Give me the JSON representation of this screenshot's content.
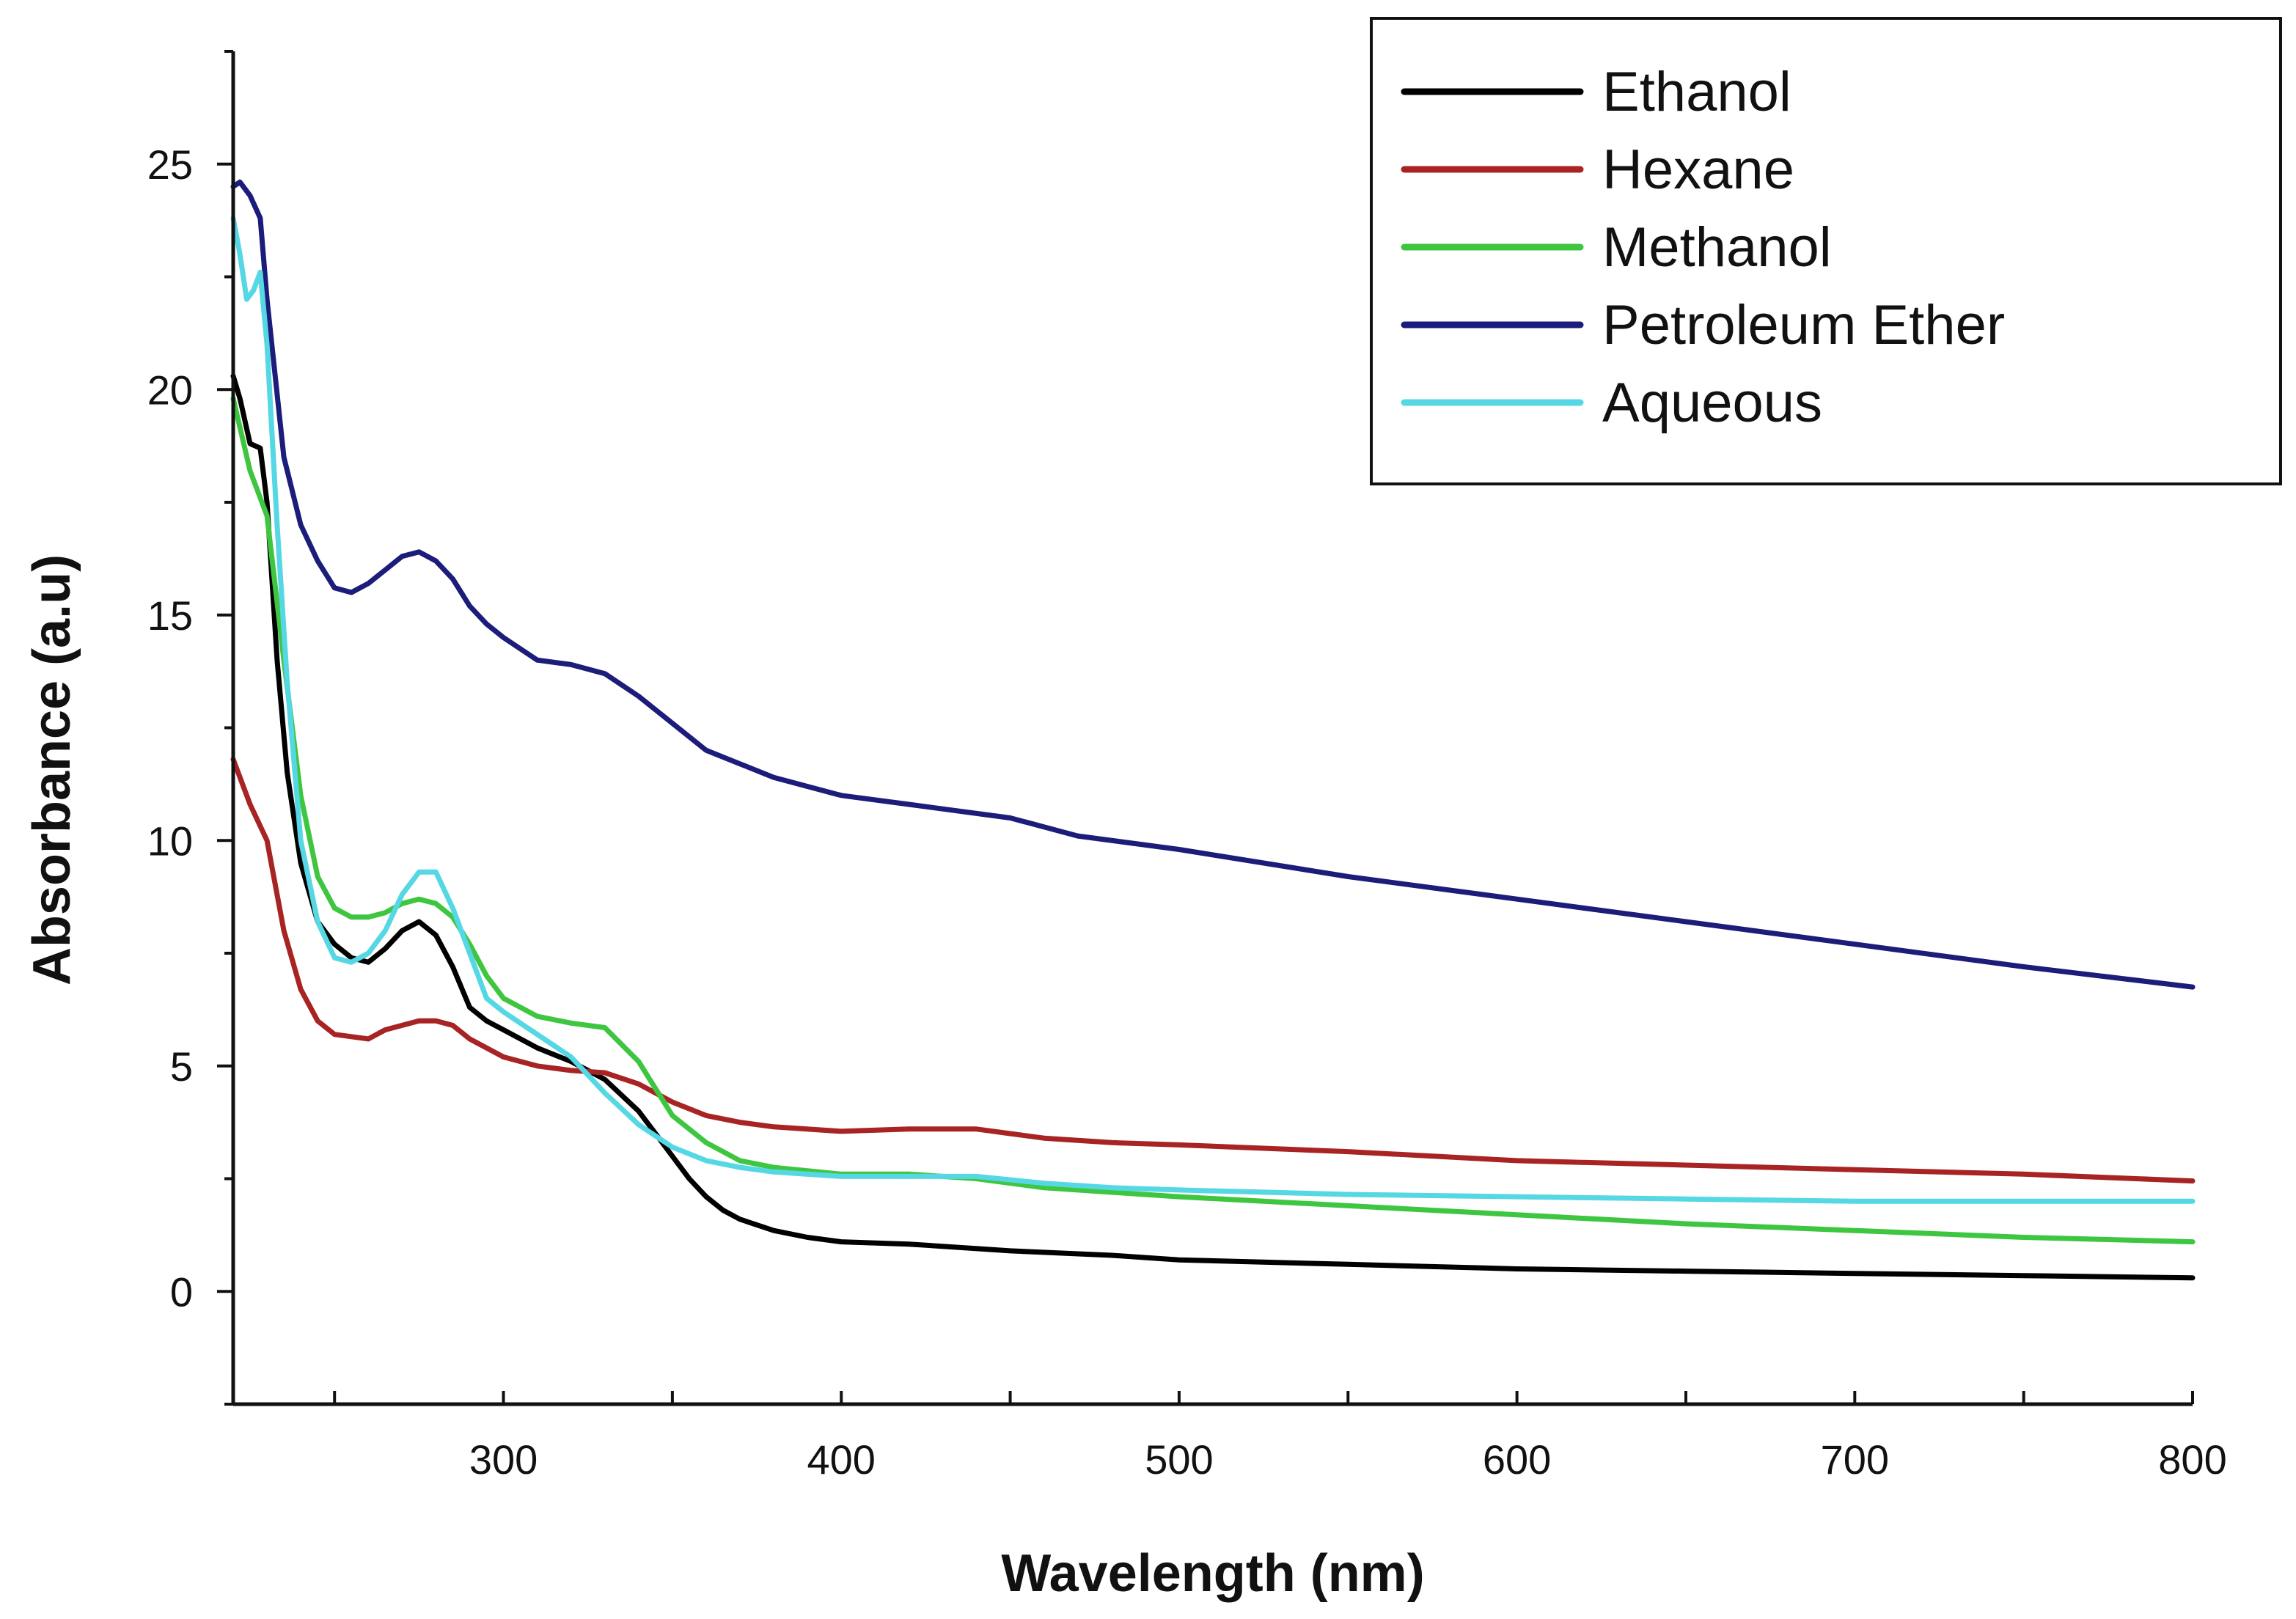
{
  "chart_data": {
    "type": "line",
    "title": "",
    "xlabel": "Wavelength (nm)",
    "ylabel": "Absorbance (a.u)",
    "xlim": [
      220,
      800
    ],
    "ylim": [
      -2.5,
      27.5
    ],
    "xticks": [
      300,
      400,
      500,
      600,
      700,
      800
    ],
    "xtick_labels": [
      "300",
      "400",
      "500",
      "600",
      "700",
      "800"
    ],
    "xminor": [
      250,
      350,
      450,
      550,
      650,
      750
    ],
    "yticks": [
      0,
      5,
      10,
      15,
      20,
      25
    ],
    "ytick_labels": [
      "0",
      "5",
      "10",
      "15",
      "20",
      "25"
    ],
    "legend_position": "top-right",
    "grid": false,
    "series": [
      {
        "name": "Ethanol",
        "color": "#000000",
        "x": [
          220,
          222,
          225,
          228,
          230,
          233,
          236,
          240,
          245,
          250,
          255,
          260,
          265,
          270,
          275,
          280,
          285,
          290,
          295,
          300,
          310,
          320,
          330,
          340,
          345,
          350,
          355,
          360,
          365,
          370,
          380,
          390,
          400,
          420,
          450,
          480,
          500,
          550,
          600,
          650,
          700,
          750,
          800
        ],
        "y": [
          20.3,
          19.8,
          18.8,
          18.7,
          17.5,
          14,
          11.5,
          9.5,
          8.2,
          7.7,
          7.4,
          7.3,
          7.6,
          8.0,
          8.2,
          7.9,
          7.2,
          6.3,
          6.0,
          5.8,
          5.4,
          5.1,
          4.7,
          4.0,
          3.5,
          3.0,
          2.5,
          2.1,
          1.8,
          1.6,
          1.35,
          1.2,
          1.1,
          1.05,
          0.9,
          0.8,
          0.7,
          0.6,
          0.5,
          0.45,
          0.4,
          0.35,
          0.3
        ]
      },
      {
        "name": "Hexane",
        "color": "#a82424",
        "x": [
          220,
          225,
          230,
          235,
          240,
          245,
          250,
          255,
          260,
          265,
          270,
          275,
          280,
          285,
          290,
          300,
          310,
          320,
          330,
          340,
          350,
          360,
          370,
          380,
          400,
          420,
          440,
          450,
          460,
          480,
          500,
          550,
          600,
          650,
          700,
          750,
          800
        ],
        "y": [
          11.8,
          10.8,
          10.0,
          8.0,
          6.7,
          6.0,
          5.7,
          5.65,
          5.6,
          5.8,
          5.9,
          6.0,
          6.0,
          5.9,
          5.6,
          5.2,
          5.0,
          4.9,
          4.85,
          4.6,
          4.2,
          3.9,
          3.75,
          3.65,
          3.55,
          3.6,
          3.6,
          3.5,
          3.4,
          3.3,
          3.25,
          3.1,
          2.9,
          2.8,
          2.7,
          2.6,
          2.45
        ]
      },
      {
        "name": "Methanol",
        "color": "#3fc640",
        "x": [
          220,
          225,
          230,
          235,
          240,
          245,
          250,
          255,
          260,
          265,
          270,
          275,
          280,
          285,
          290,
          295,
          300,
          310,
          320,
          330,
          340,
          350,
          360,
          370,
          380,
          400,
          420,
          440,
          460,
          480,
          500,
          550,
          600,
          650,
          700,
          750,
          800
        ],
        "y": [
          19.8,
          18.2,
          17.2,
          14.0,
          11.0,
          9.2,
          8.5,
          8.3,
          8.3,
          8.4,
          8.6,
          8.7,
          8.6,
          8.3,
          7.7,
          7.0,
          6.5,
          6.1,
          5.95,
          5.85,
          5.1,
          3.9,
          3.3,
          2.9,
          2.75,
          2.6,
          2.6,
          2.5,
          2.3,
          2.2,
          2.1,
          1.9,
          1.7,
          1.5,
          1.35,
          1.2,
          1.1
        ]
      },
      {
        "name": "Petroleum Ether",
        "color": "#1c1c7a",
        "x": [
          220,
          222,
          225,
          228,
          230,
          235,
          240,
          245,
          250,
          255,
          260,
          265,
          270,
          275,
          280,
          285,
          290,
          295,
          300,
          310,
          320,
          330,
          340,
          350,
          360,
          370,
          380,
          400,
          420,
          450,
          470,
          500,
          550,
          600,
          650,
          700,
          750,
          800
        ],
        "y": [
          24.5,
          24.6,
          24.3,
          23.8,
          22.0,
          18.5,
          17.0,
          16.2,
          15.6,
          15.5,
          15.7,
          16.0,
          16.3,
          16.4,
          16.2,
          15.8,
          15.2,
          14.8,
          14.5,
          14.0,
          13.9,
          13.7,
          13.2,
          12.6,
          12.0,
          11.7,
          11.4,
          11.0,
          10.8,
          10.5,
          10.1,
          9.8,
          9.2,
          8.7,
          8.2,
          7.7,
          7.2,
          6.75
        ]
      },
      {
        "name": "Aqueous",
        "color": "#56d7e4",
        "x": [
          220,
          222,
          224,
          226,
          228,
          230,
          233,
          236,
          240,
          245,
          250,
          255,
          260,
          265,
          270,
          275,
          280,
          285,
          290,
          295,
          300,
          310,
          320,
          330,
          340,
          350,
          360,
          370,
          380,
          400,
          420,
          440,
          460,
          480,
          500,
          550,
          600,
          650,
          700,
          750,
          800
        ],
        "y": [
          23.8,
          23.0,
          22.0,
          22.2,
          22.6,
          21.0,
          17.0,
          13.5,
          10.0,
          8.2,
          7.4,
          7.3,
          7.5,
          8.0,
          8.8,
          9.3,
          9.3,
          8.5,
          7.5,
          6.5,
          6.2,
          5.7,
          5.2,
          4.4,
          3.7,
          3.2,
          2.9,
          2.75,
          2.65,
          2.55,
          2.55,
          2.55,
          2.4,
          2.3,
          2.25,
          2.15,
          2.1,
          2.05,
          2.0,
          2.0,
          2.0
        ]
      }
    ]
  }
}
